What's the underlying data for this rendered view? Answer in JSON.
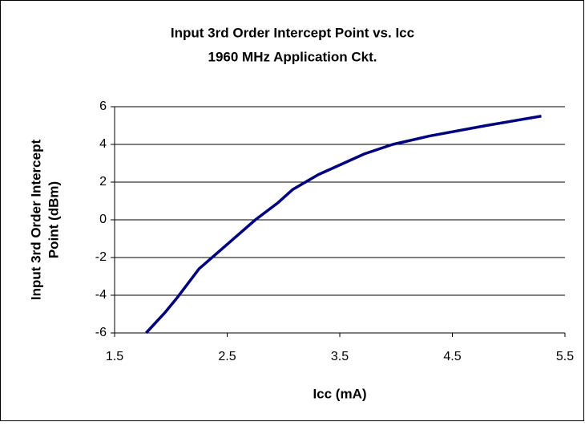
{
  "chart_data": {
    "type": "line",
    "title": "Input 3rd Order Intercept Point vs. Icc",
    "subtitle": "1960 MHz Application Ckt.",
    "xlabel": "Icc (mA)",
    "ylabel": [
      "Input 3rd Order Intercept",
      "Point (dBm)"
    ],
    "x": [
      1.78,
      1.95,
      2.06,
      2.25,
      2.5,
      2.75,
      2.95,
      3.08,
      3.31,
      3.72,
      3.97,
      4.3,
      4.8,
      5.29
    ],
    "series": [
      {
        "color": "#000080",
        "values": [
          -6,
          -4.9,
          -4.1,
          -2.6,
          -1.3,
          0,
          0.9,
          1.6,
          2.4,
          3.5,
          4.0,
          4.45,
          5.0,
          5.5
        ]
      }
    ],
    "xlim": [
      1.5,
      5.5
    ],
    "xticks": [
      1.5,
      2.5,
      3.5,
      4.5,
      5.5
    ],
    "ylim": [
      -6,
      6
    ],
    "yticks": [
      -6,
      -4,
      -2,
      0,
      2,
      4,
      6
    ],
    "grid": true
  }
}
